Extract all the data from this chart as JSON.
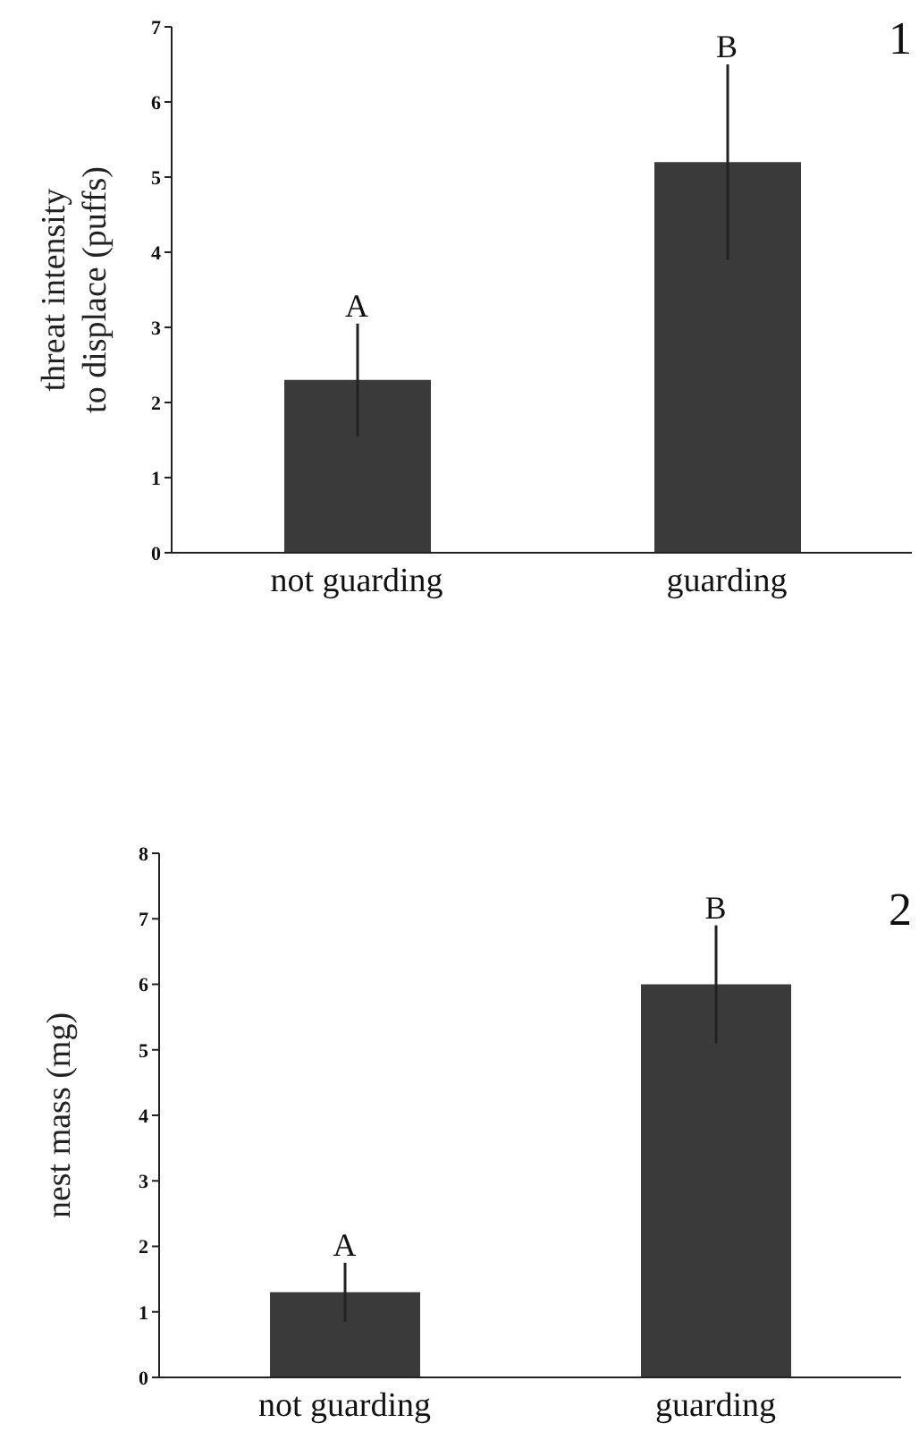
{
  "chart_data": [
    {
      "type": "bar",
      "ylabel": "threat intensity\nto displace (puffs)",
      "categories": [
        "not guarding",
        "guarding"
      ],
      "values": [
        2.3,
        5.2
      ],
      "errors": [
        0.75,
        1.3
      ],
      "color": "#3a3a3a",
      "ylim": [
        0,
        7
      ],
      "yticks": [
        0,
        1,
        2,
        3,
        4,
        5,
        6,
        7
      ],
      "grid": false,
      "legend": false,
      "annotations": [
        "A",
        "B",
        "1"
      ]
    },
    {
      "type": "bar",
      "ylabel": "nest mass (mg)",
      "categories": [
        "not guarding",
        "guarding"
      ],
      "values": [
        1.3,
        6.0
      ],
      "errors": [
        0.45,
        0.9
      ],
      "color": "#3a3a3a",
      "ylim": [
        0,
        8
      ],
      "yticks": [
        0,
        1,
        2,
        3,
        4,
        5,
        6,
        7,
        8
      ],
      "grid": false,
      "legend": false,
      "annotations": [
        "A",
        "B",
        "2"
      ]
    }
  ]
}
